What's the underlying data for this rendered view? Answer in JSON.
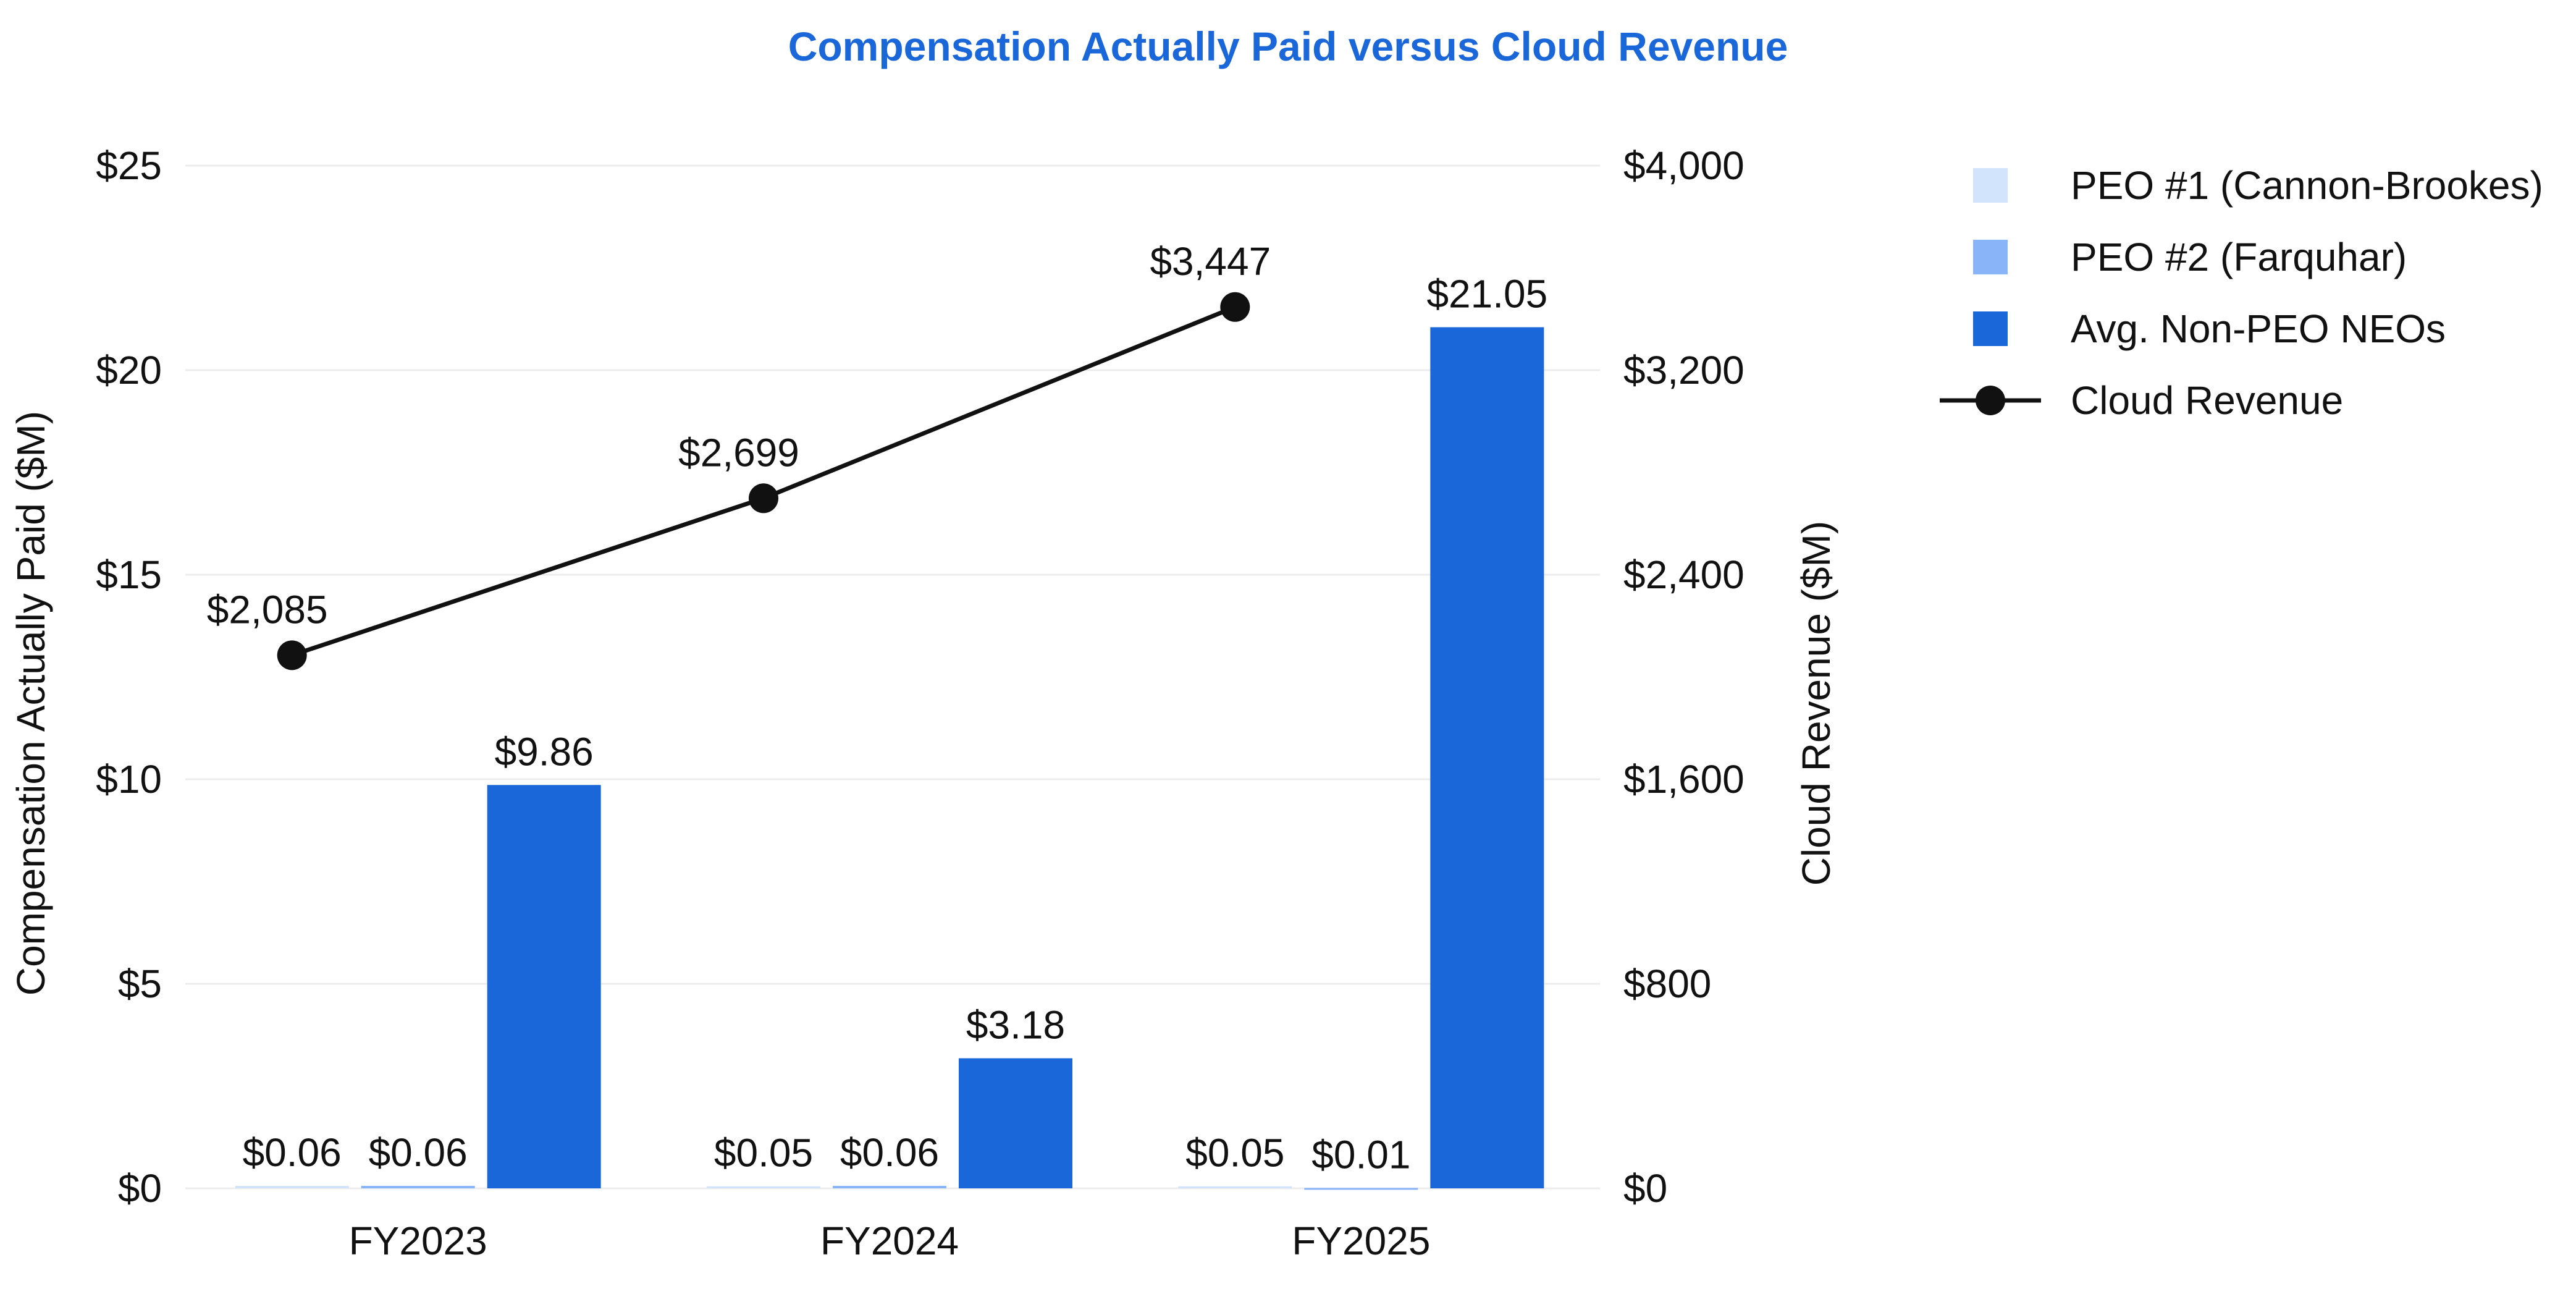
{
  "chart_data": {
    "type": "bar",
    "title": "Compensation Actually Paid versus Cloud Revenue",
    "categories": [
      "FY2023",
      "FY2024",
      "FY2025"
    ],
    "ylabel": "Compensation Actually Paid ($M)",
    "y2label": "Cloud Revenue ($M)",
    "ylim": [
      0,
      25
    ],
    "y2lim": [
      0,
      4000
    ],
    "yticks": [
      0,
      5,
      10,
      15,
      20,
      25
    ],
    "yticklabels": [
      "$0",
      "$5",
      "$10",
      "$15",
      "$20",
      "$25"
    ],
    "y2ticks": [
      0,
      800,
      1600,
      2400,
      3200,
      4000
    ],
    "y2ticklabels": [
      "$0",
      "$800",
      "$1,600",
      "$2,400",
      "$3,200",
      "$4,000"
    ],
    "grid": true,
    "legend_position": "right",
    "series": [
      {
        "name": "PEO #1 (Cannon-Brookes)",
        "kind": "bar",
        "axis": "left",
        "color": "#d2e3fc",
        "values": [
          0.06,
          0.05,
          0.05
        ],
        "labels": [
          "$0.06",
          "$0.05",
          "$0.05"
        ]
      },
      {
        "name": "PEO #2 (Farquhar)",
        "kind": "bar",
        "axis": "left",
        "color": "#8ab4f8",
        "values": [
          0.06,
          0.06,
          0.01
        ],
        "labels": [
          "$0.06",
          "$0.06",
          "$0.01"
        ]
      },
      {
        "name": "Avg. Non-PEO NEOs",
        "kind": "bar",
        "axis": "left",
        "color": "#1a67d9",
        "values": [
          9.86,
          3.18,
          21.05
        ],
        "labels": [
          "$9.86",
          "$3.18",
          "$21.05"
        ]
      },
      {
        "name": "Cloud Revenue",
        "kind": "line",
        "axis": "right",
        "color": "#111111",
        "values": [
          2085,
          2699,
          3447
        ],
        "labels": [
          "$2,085",
          "$2,699",
          "$3,447"
        ]
      }
    ],
    "title_color": "#1a67d9"
  }
}
